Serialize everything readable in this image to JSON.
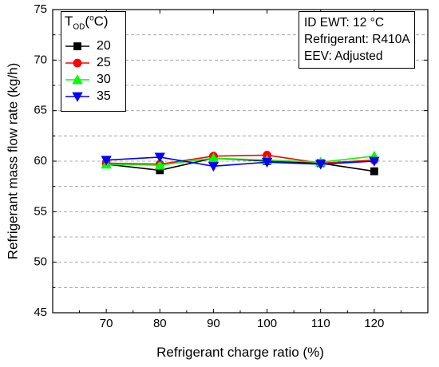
{
  "chart_data": {
    "type": "line",
    "xlabel": "Refrigerant charge ratio (%)",
    "ylabel": "Refrigerant mass flow rate (kg/h)",
    "x": [
      70,
      80,
      90,
      100,
      110,
      120
    ],
    "xlim": [
      60,
      130
    ],
    "ylim": [
      45,
      75
    ],
    "x_ticks": [
      "70",
      "80",
      "90",
      "100",
      "110",
      "120"
    ],
    "y_ticks": [
      "45",
      "50",
      "55",
      "60",
      "65",
      "70",
      "75"
    ],
    "grid": "horizontal dashed",
    "legend_position": "top-left",
    "legend": {
      "title_main": "T",
      "title_sub": "OD",
      "title_paren_open": "(",
      "title_unit_sup": "o",
      "title_unit": "C)"
    },
    "series": [
      {
        "name": "20",
        "color": "#000000",
        "marker": "square",
        "values": [
          59.7,
          59.1,
          60.3,
          60.0,
          59.8,
          59.0
        ]
      },
      {
        "name": "25",
        "color": "#ff0000",
        "marker": "circle",
        "values": [
          59.8,
          59.7,
          60.5,
          60.6,
          59.8,
          60.1
        ]
      },
      {
        "name": "30",
        "color": "#00ff00",
        "marker": "triangle-up",
        "values": [
          59.7,
          59.6,
          60.3,
          60.1,
          59.9,
          60.5
        ]
      },
      {
        "name": "35",
        "color": "#0000ff",
        "marker": "triangle-down",
        "values": [
          60.1,
          60.4,
          59.5,
          59.9,
          59.7,
          60.0
        ]
      }
    ],
    "annotation": [
      "ID EWT: 12 °C",
      "Refrigerant: R410A",
      "EEV: Adjusted"
    ]
  }
}
